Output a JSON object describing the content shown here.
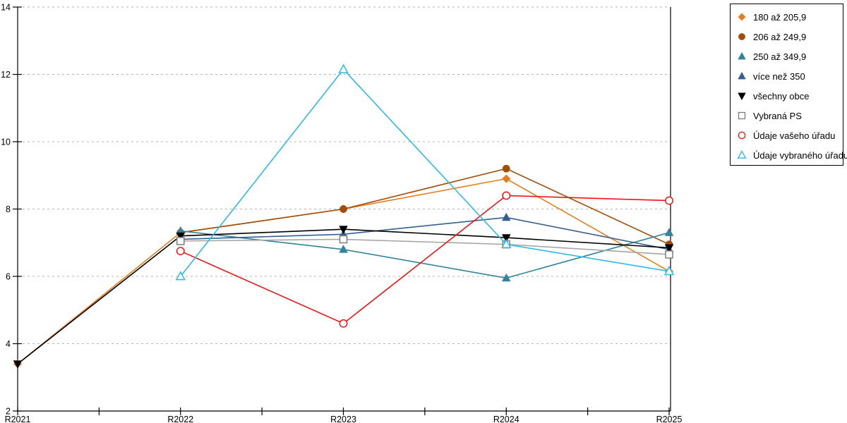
{
  "chart_data": {
    "type": "line",
    "title": "",
    "xlabel": "",
    "ylabel": "",
    "categories": [
      "R2021",
      "R2022",
      "R2023",
      "R2024",
      "R2025"
    ],
    "ylim": [
      2,
      14
    ],
    "yticks": [
      2,
      4,
      6,
      8,
      10,
      12,
      14
    ],
    "grid": "horizontal-dashed",
    "grid_color": "#b5b5b5",
    "axis_color": "#000000",
    "legend_position": "right-outside",
    "series": [
      {
        "name": "180 až 205,9",
        "marker": "diamond",
        "fill": "solid",
        "color": "#E87D1E",
        "values": [
          3.4,
          7.3,
          8.0,
          8.9,
          6.15
        ]
      },
      {
        "name": "206 až 249,9",
        "marker": "circle",
        "fill": "solid",
        "color": "#A24D0A",
        "values": [
          null,
          7.3,
          8.0,
          9.2,
          6.95
        ]
      },
      {
        "name": "250 až 349,9",
        "marker": "triangle-up",
        "fill": "solid",
        "color": "#31849B",
        "values": [
          null,
          7.35,
          6.8,
          5.95,
          7.3
        ]
      },
      {
        "name": "více než 350",
        "marker": "triangle-up",
        "fill": "solid",
        "color": "#365F91",
        "values": [
          null,
          7.1,
          7.25,
          7.75,
          6.8
        ]
      },
      {
        "name": "všechny obce",
        "marker": "triangle-down",
        "fill": "solid",
        "color": "#000000",
        "values": [
          3.4,
          7.2,
          7.4,
          7.15,
          6.85
        ]
      },
      {
        "name": "Vybraná PS",
        "marker": "square",
        "fill": "open",
        "color": "#7F7F7F",
        "line_color": "#A6A6A6",
        "values": [
          null,
          7.05,
          7.1,
          6.95,
          6.65
        ]
      },
      {
        "name": "Údaje vašeho úřadu",
        "marker": "circle",
        "fill": "open",
        "color": "#F01515",
        "values": [
          null,
          6.75,
          4.6,
          8.4,
          8.25
        ]
      },
      {
        "name": "Údaje vybraného úřadu",
        "marker": "triangle-up",
        "fill": "open",
        "color": "#2FB8EC",
        "values": [
          null,
          6.0,
          12.15,
          6.95,
          6.15
        ]
      }
    ]
  }
}
